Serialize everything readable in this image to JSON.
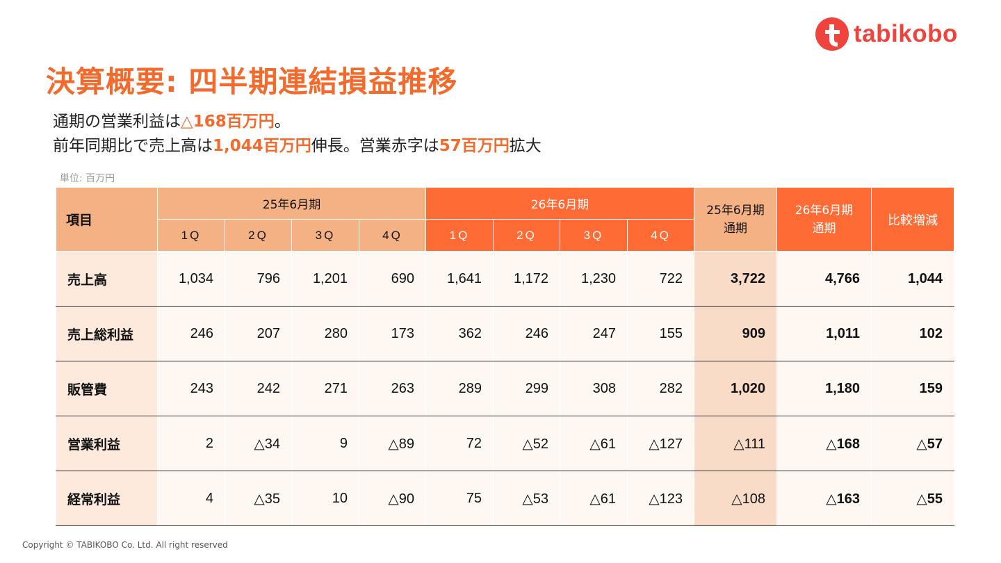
{
  "brand": {
    "name": "tabikobo",
    "color": "#f0433c",
    "icon": "tabikobo-t-logo-icon"
  },
  "title": "決算概要: 四半期連結損益推移",
  "summary": {
    "line1": {
      "pre": "通期の営業利益は",
      "hl": "△168百万円",
      "post": "。"
    },
    "line2": {
      "pre": "前年同期比で売上高は",
      "hl1": "1,044百万円",
      "mid": "伸長。営業赤字は",
      "hl2": "57百万円",
      "post": "拡大"
    }
  },
  "unit_label": "単位: 百万円",
  "table": {
    "item_header": "項目",
    "group_25": "25年6月期",
    "group_26": "26年6月期",
    "quarters": [
      "1Q",
      "2Q",
      "3Q",
      "4Q"
    ],
    "fy25": {
      "line1": "25年6月期",
      "line2": "通期"
    },
    "fy26": {
      "line1": "26年6月期",
      "line2": "通期"
    },
    "compare": "比較増減",
    "rows": [
      {
        "label": "売上高",
        "q25": [
          "1,034",
          "796",
          "1,201",
          "690"
        ],
        "q26": [
          "1,641",
          "1,172",
          "1,230",
          "722"
        ],
        "fy25": "3,722",
        "fy26": "4,766",
        "diff": "1,044",
        "fy25_bold": true
      },
      {
        "label": "売上総利益",
        "q25": [
          "246",
          "207",
          "280",
          "173"
        ],
        "q26": [
          "362",
          "246",
          "247",
          "155"
        ],
        "fy25": "909",
        "fy26": "1,011",
        "diff": "102",
        "fy25_bold": true
      },
      {
        "label": "販管費",
        "q25": [
          "243",
          "242",
          "271",
          "263"
        ],
        "q26": [
          "289",
          "299",
          "308",
          "282"
        ],
        "fy25": "1,020",
        "fy26": "1,180",
        "diff": "159",
        "fy25_bold": true
      },
      {
        "label": "営業利益",
        "q25": [
          "2",
          "△34",
          "9",
          "△89"
        ],
        "q26": [
          "72",
          "△52",
          "△61",
          "△127"
        ],
        "fy25": "△111",
        "fy26": "△168",
        "diff": "△57",
        "fy25_bold": false
      },
      {
        "label": "経常利益",
        "q25": [
          "4",
          "△35",
          "10",
          "△90"
        ],
        "q26": [
          "75",
          "△53",
          "△61",
          "△123"
        ],
        "fy25": "△108",
        "fy26": "△163",
        "diff": "△55",
        "fy25_bold": false
      }
    ]
  },
  "copyright": "Copyright © TABIKOBO Co. Ltd. All right reserved"
}
